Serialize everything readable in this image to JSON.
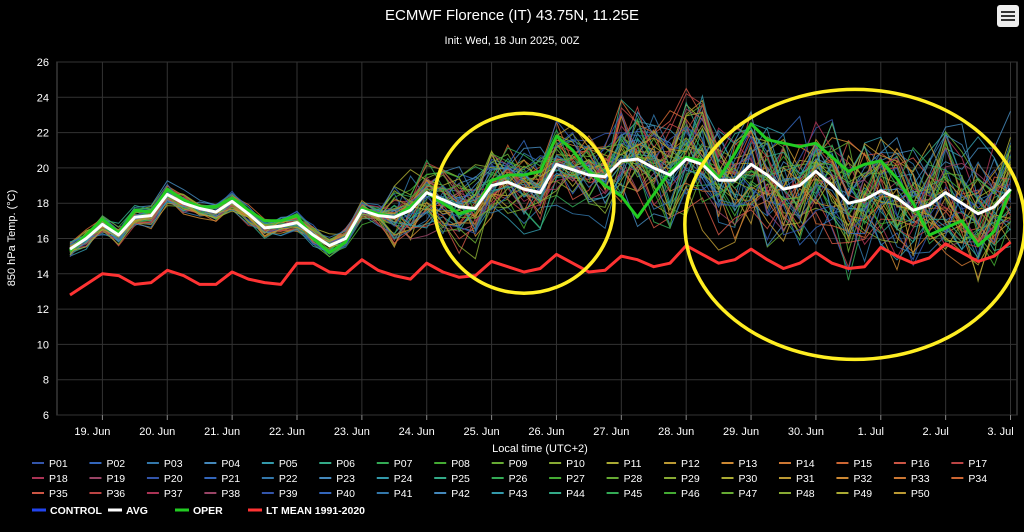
{
  "chart_data": {
    "type": "line",
    "title": "ECMWF Florence (IT) 43.75N, 11.25E",
    "subtitle": "Init: Wed, 18 Jun 2025, 00Z",
    "xlabel": "Local time (UTC+2)",
    "ylabel": "850 hPa Temp. (°C)",
    "ylim": [
      6,
      26
    ],
    "yticks": [
      6,
      8,
      10,
      12,
      14,
      16,
      18,
      20,
      22,
      24,
      26
    ],
    "xlim_days": [
      18.3,
      33.1
    ],
    "xticks": [
      {
        "day": 19,
        "label": "19. Jun"
      },
      {
        "day": 20,
        "label": "20. Jun"
      },
      {
        "day": 21,
        "label": "21. Jun"
      },
      {
        "day": 22,
        "label": "22. Jun"
      },
      {
        "day": 23,
        "label": "23. Jun"
      },
      {
        "day": 24,
        "label": "24. Jun"
      },
      {
        "day": 25,
        "label": "25. Jun"
      },
      {
        "day": 26,
        "label": "26. Jun"
      },
      {
        "day": 27,
        "label": "27. Jun"
      },
      {
        "day": 28,
        "label": "28. Jun"
      },
      {
        "day": 29,
        "label": "29. Jun"
      },
      {
        "day": 30,
        "label": "30. Jun"
      },
      {
        "day": 31,
        "label": "1. Jul"
      },
      {
        "day": 32,
        "label": "2. Jul"
      },
      {
        "day": 33,
        "label": "3. Jul"
      }
    ],
    "grid": true,
    "legend_position": "bottom",
    "series": [
      {
        "name": "AVG",
        "color": "#ffffff",
        "x": [
          18.5,
          18.75,
          19,
          19.25,
          19.5,
          19.75,
          20,
          20.25,
          20.5,
          20.75,
          21,
          21.25,
          21.5,
          21.75,
          22,
          22.25,
          22.5,
          22.75,
          23,
          23.25,
          23.5,
          23.75,
          24,
          24.25,
          24.5,
          24.75,
          25,
          25.25,
          25.5,
          25.75,
          26,
          26.25,
          26.5,
          26.75,
          27,
          27.25,
          27.5,
          27.75,
          28,
          28.25,
          28.5,
          28.75,
          29,
          29.25,
          29.5,
          29.75,
          30,
          30.25,
          30.5,
          30.75,
          31,
          31.25,
          31.5,
          31.75,
          32,
          32.25,
          32.5,
          32.75,
          33
        ],
        "y": [
          15.4,
          16.0,
          16.8,
          16.2,
          17.2,
          17.3,
          18.5,
          18.0,
          17.7,
          17.5,
          18.1,
          17.4,
          16.6,
          16.7,
          16.9,
          16.2,
          15.6,
          16.0,
          17.6,
          17.3,
          17.2,
          17.6,
          18.6,
          18.2,
          17.8,
          17.7,
          19.0,
          19.2,
          18.8,
          18.6,
          20.2,
          19.9,
          19.6,
          19.5,
          20.4,
          20.5,
          20.0,
          19.6,
          20.5,
          20.2,
          19.3,
          19.3,
          20.2,
          19.6,
          18.8,
          19.0,
          19.8,
          19.0,
          18.0,
          18.2,
          18.7,
          18.3,
          17.6,
          17.9,
          18.6,
          18.0,
          17.4,
          17.8,
          18.8
        ]
      },
      {
        "name": "OPER",
        "color": "#22cc22",
        "x": [
          18.5,
          18.75,
          19,
          19.25,
          19.5,
          19.75,
          20,
          20.25,
          20.5,
          20.75,
          21,
          21.25,
          21.5,
          21.75,
          22,
          22.25,
          22.5,
          22.75,
          23,
          23.25,
          23.5,
          23.75,
          24,
          24.25,
          24.5,
          24.75,
          25,
          25.25,
          25.5,
          25.75,
          26,
          26.25,
          26.5,
          26.75,
          27,
          27.25,
          27.5,
          27.75,
          28,
          28.25,
          28.5,
          28.75,
          29,
          29.25,
          29.5,
          29.75,
          30,
          30.25,
          30.5,
          30.75,
          31,
          31.25,
          31.5,
          31.75,
          32,
          32.25,
          32.5,
          32.75,
          33
        ],
        "y": [
          15.3,
          16.2,
          17.1,
          16.3,
          17.6,
          17.5,
          18.8,
          18.2,
          17.8,
          17.8,
          18.3,
          17.6,
          17.0,
          17.0,
          17.3,
          16.0,
          15.2,
          15.8,
          17.7,
          17.4,
          17.2,
          17.8,
          18.6,
          18.0,
          17.4,
          17.7,
          19.3,
          19.6,
          19.6,
          19.8,
          21.8,
          21.0,
          19.8,
          19.0,
          18.4,
          17.2,
          18.5,
          19.8,
          20.6,
          20.4,
          19.4,
          20.8,
          22.5,
          21.6,
          21.4,
          21.2,
          21.4,
          20.6,
          19.8,
          20.2,
          20.4,
          19.4,
          18.0,
          16.2,
          16.6,
          17.0,
          15.6,
          16.4,
          18.8
        ]
      },
      {
        "name": "LT MEAN 1991-2020",
        "color": "#ff3333",
        "x": [
          18.5,
          18.75,
          19,
          19.25,
          19.5,
          19.75,
          20,
          20.25,
          20.5,
          20.75,
          21,
          21.25,
          21.5,
          21.75,
          22,
          22.25,
          22.5,
          22.75,
          23,
          23.25,
          23.5,
          23.75,
          24,
          24.25,
          24.5,
          24.75,
          25,
          25.25,
          25.5,
          25.75,
          26,
          26.25,
          26.5,
          26.75,
          27,
          27.25,
          27.5,
          27.75,
          28,
          28.25,
          28.5,
          28.75,
          29,
          29.25,
          29.5,
          29.75,
          30,
          30.25,
          30.5,
          30.75,
          31,
          31.25,
          31.5,
          31.75,
          32,
          32.25,
          32.5,
          32.75,
          33
        ],
        "y": [
          12.8,
          13.4,
          14.0,
          13.9,
          13.4,
          13.5,
          14.2,
          13.9,
          13.4,
          13.4,
          14.1,
          13.7,
          13.5,
          13.4,
          14.6,
          14.6,
          14.1,
          14.0,
          14.8,
          14.2,
          13.9,
          13.7,
          14.6,
          14.1,
          13.8,
          13.9,
          14.7,
          14.4,
          14.1,
          14.3,
          15.1,
          14.6,
          14.1,
          14.2,
          15.0,
          14.8,
          14.4,
          14.6,
          15.6,
          15.1,
          14.6,
          14.8,
          15.4,
          14.8,
          14.3,
          14.6,
          15.2,
          14.6,
          14.3,
          14.4,
          15.5,
          15.0,
          14.6,
          14.9,
          15.7,
          15.2,
          14.7,
          15.0,
          15.8
        ]
      },
      {
        "name": "CONTROL",
        "color": "#2244ee"
      }
    ],
    "members": [
      "P01",
      "P02",
      "P03",
      "P04",
      "P05",
      "P06",
      "P07",
      "P08",
      "P09",
      "P10",
      "P11",
      "P12",
      "P13",
      "P14",
      "P15",
      "P16",
      "P17",
      "P18",
      "P19",
      "P20",
      "P21",
      "P22",
      "P23",
      "P24",
      "P25",
      "P26",
      "P27",
      "P28",
      "P29",
      "P30",
      "P31",
      "P32",
      "P33",
      "P34",
      "P35",
      "P36",
      "P37",
      "P38",
      "P39",
      "P40",
      "P41",
      "P42",
      "P43",
      "P44",
      "P45",
      "P46",
      "P47",
      "P48",
      "P49",
      "P50"
    ],
    "member_colors": [
      "#3355aa",
      "#3366bb",
      "#3377aa",
      "#4488bb",
      "#3399aa",
      "#33aa88",
      "#33aa55",
      "#44aa33",
      "#66aa33",
      "#88aa33",
      "#aaaa33",
      "#bb9933",
      "#cc8833",
      "#cc7733",
      "#cc6633",
      "#cc5544",
      "#bb4444",
      "#aa3355",
      "#994466"
    ],
    "annotations": [
      {
        "type": "circle",
        "color": "#ffee22",
        "cx_day": 25.5,
        "cy_value": 18.0
      },
      {
        "type": "ellipse",
        "color": "#ffee22",
        "cx_day": 30.6,
        "cy_value": 16.8
      }
    ]
  }
}
